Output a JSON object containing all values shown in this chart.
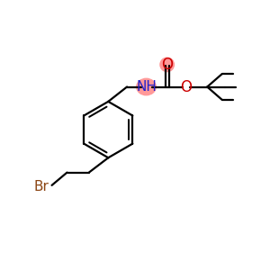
{
  "background_color": "#ffffff",
  "bond_color": "#000000",
  "N_color": "#2222cc",
  "O_color": "#cc0000",
  "Br_color": "#8B4513",
  "NH_highlight": "#ff9999",
  "O_highlight": "#ff9999",
  "lw": 1.6,
  "figsize": [
    3.0,
    3.0
  ],
  "dpi": 100,
  "xlim": [
    0,
    10
  ],
  "ylim": [
    0,
    10
  ]
}
